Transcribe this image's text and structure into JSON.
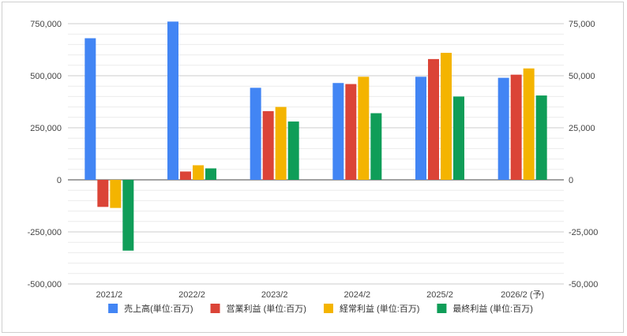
{
  "chart_data": {
    "type": "bar",
    "categories": [
      "2021/2",
      "2022/2",
      "2023/2",
      "2024/2",
      "2025/2",
      "2026/2 (予)"
    ],
    "series": [
      {
        "name": "売上高(単位:百万)",
        "axis": "left",
        "color": "#4285f4",
        "values": [
          680000,
          760000,
          442000,
          465000,
          495000,
          490000
        ]
      },
      {
        "name": "営業利益 (単位:百万)",
        "axis": "right",
        "color": "#db4437",
        "values": [
          -13000,
          4000,
          33000,
          46000,
          58000,
          50500
        ]
      },
      {
        "name": "経常利益 (単位:百万)",
        "axis": "right",
        "color": "#f4b400",
        "values": [
          -13500,
          7000,
          35000,
          49500,
          61000,
          53500
        ]
      },
      {
        "name": "最終利益 (単位:百万)",
        "axis": "right",
        "color": "#0f9d58",
        "values": [
          -34000,
          5500,
          28000,
          32000,
          40000,
          40500
        ]
      }
    ],
    "left_axis": {
      "ylim": [
        -500000,
        750000
      ],
      "ticks": [
        750000,
        500000,
        250000,
        0,
        -250000,
        -500000
      ],
      "tick_labels": [
        "750,000",
        "500,000",
        "250,000",
        "0",
        "-250,000",
        "-500,000"
      ]
    },
    "right_axis": {
      "ylim": [
        -50000,
        75000
      ],
      "ticks": [
        75000,
        50000,
        25000,
        0,
        -25000,
        -50000
      ],
      "tick_labels": [
        "75,000",
        "50,000",
        "25,000",
        "0",
        "-25,000",
        "-50,000"
      ]
    },
    "title": "",
    "xlabel": "",
    "ylabel": "",
    "grid": true,
    "legend_position": "bottom"
  }
}
